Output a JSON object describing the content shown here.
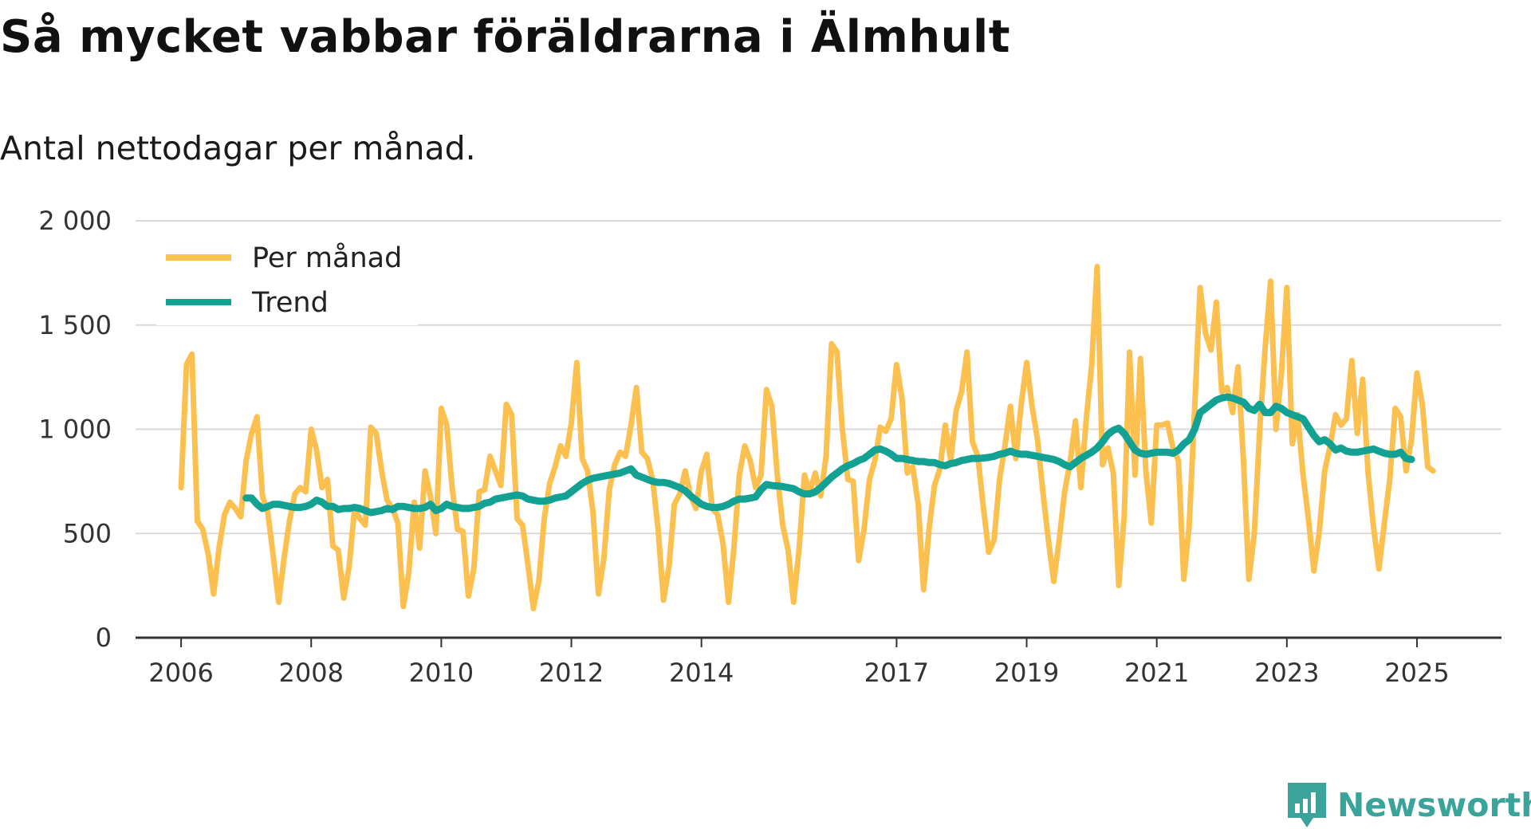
{
  "title": "Så mycket vabbar föräldrarna i Älmhult",
  "subtitle": "Antal nettodagar per månad.",
  "brand": {
    "name": "Newsworthy",
    "icon": "newsworthy-logo-icon"
  },
  "colors": {
    "monthly": "#fbc04f",
    "trend": "#12a192",
    "grid": "#d9d9d9",
    "axis": "#333333",
    "brand": "#3aa39a"
  },
  "chart_data": {
    "type": "line",
    "title": "Så mycket vabbar föräldrarna i Älmhult",
    "subtitle": "Antal nettodagar per månad.",
    "xlabel": "",
    "ylabel": "",
    "ylim": [
      0,
      2000
    ],
    "xlim": [
      2005.3,
      2026.3
    ],
    "grid": true,
    "legend_position": "top-left",
    "y_ticks": [
      0,
      500,
      1000,
      1500,
      2000
    ],
    "y_tick_labels": [
      "0",
      "500",
      "1 000",
      "1 500",
      "2 000"
    ],
    "x_ticks": [
      2006,
      2008,
      2010,
      2012,
      2014,
      2017,
      2019,
      2021,
      2023,
      2025
    ],
    "x_tick_labels": [
      "2006",
      "2008",
      "2010",
      "2012",
      "2014",
      "2017",
      "2019",
      "2021",
      "2023",
      "2025"
    ],
    "series": [
      {
        "name": "Per månad",
        "color": "#fbc04f",
        "x_start": 2006.0,
        "x_step": 0.08333,
        "values": [
          720,
          1310,
          1360,
          560,
          520,
          400,
          210,
          430,
          590,
          650,
          620,
          580,
          850,
          980,
          1060,
          680,
          600,
          390,
          170,
          380,
          560,
          690,
          720,
          700,
          1000,
          900,
          720,
          760,
          440,
          420,
          190,
          340,
          620,
          570,
          540,
          1010,
          980,
          800,
          660,
          620,
          550,
          150,
          310,
          650,
          430,
          800,
          680,
          500,
          1100,
          1020,
          720,
          520,
          510,
          200,
          330,
          700,
          710,
          870,
          800,
          730,
          1120,
          1070,
          570,
          540,
          350,
          140,
          270,
          570,
          740,
          820,
          920,
          870,
          1030,
          1320,
          860,
          800,
          600,
          210,
          380,
          710,
          830,
          890,
          870,
          1020,
          1200,
          890,
          860,
          760,
          520,
          180,
          340,
          640,
          690,
          800,
          680,
          620,
          800,
          880,
          620,
          590,
          450,
          170,
          430,
          780,
          920,
          850,
          720,
          780,
          1190,
          1110,
          780,
          540,
          420,
          170,
          420,
          780,
          700,
          790,
          680,
          870,
          1410,
          1370,
          1000,
          760,
          750,
          370,
          520,
          760,
          850,
          1010,
          990,
          1050,
          1310,
          1150,
          790,
          820,
          640,
          230,
          520,
          730,
          810,
          1020,
          850,
          1090,
          1180,
          1370,
          940,
          870,
          630,
          410,
          470,
          760,
          920,
          1110,
          860,
          1120,
          1320,
          1110,
          950,
          700,
          470,
          270,
          470,
          700,
          840,
          1040,
          720,
          1050,
          1310,
          1780,
          830,
          910,
          790,
          250,
          580,
          1370,
          780,
          1340,
          800,
          550,
          1020,
          1020,
          1030,
          910,
          850,
          280,
          540,
          1100,
          1680,
          1460,
          1380,
          1610,
          1180,
          1200,
          1080,
          1300,
          850,
          280,
          500,
          1000,
          1390,
          1710,
          1000,
          1270,
          1680,
          930,
          1070,
          780,
          570,
          320,
          510,
          800,
          920,
          1070,
          1020,
          1050,
          1330,
          980,
          1240,
          790,
          530,
          330,
          550,
          760,
          1100,
          1060,
          800,
          950,
          1270,
          1120,
          820,
          800
        ]
      },
      {
        "name": "Trend",
        "color": "#12a192",
        "x_start": 2007.0,
        "x_step": 0.08333,
        "values": [
          670,
          670,
          640,
          620,
          630,
          640,
          640,
          635,
          630,
          625,
          625,
          630,
          640,
          660,
          650,
          630,
          630,
          615,
          620,
          620,
          625,
          620,
          610,
          600,
          605,
          610,
          620,
          615,
          630,
          630,
          625,
          620,
          620,
          625,
          640,
          610,
          620,
          640,
          630,
          625,
          620,
          620,
          625,
          630,
          645,
          650,
          665,
          670,
          675,
          680,
          685,
          680,
          665,
          660,
          655,
          655,
          660,
          670,
          675,
          680,
          700,
          720,
          740,
          755,
          765,
          770,
          775,
          780,
          785,
          790,
          800,
          810,
          780,
          770,
          760,
          750,
          745,
          745,
          740,
          730,
          720,
          705,
          680,
          660,
          640,
          630,
          625,
          625,
          630,
          640,
          655,
          665,
          665,
          670,
          675,
          710,
          735,
          730,
          728,
          725,
          720,
          715,
          700,
          690,
          690,
          700,
          720,
          745,
          770,
          790,
          810,
          825,
          835,
          850,
          860,
          880,
          900,
          905,
          895,
          880,
          860,
          860,
          855,
          850,
          845,
          845,
          840,
          840,
          830,
          825,
          835,
          840,
          850,
          855,
          860,
          860,
          862,
          865,
          870,
          880,
          885,
          895,
          885,
          880,
          880,
          875,
          870,
          865,
          860,
          855,
          845,
          830,
          820,
          840,
          860,
          875,
          890,
          910,
          940,
          975,
          995,
          1005,
          980,
          940,
          900,
          885,
          880,
          885,
          890,
          890,
          890,
          885,
          900,
          930,
          950,
          1000,
          1080,
          1100,
          1120,
          1140,
          1150,
          1155,
          1150,
          1140,
          1130,
          1100,
          1090,
          1120,
          1080,
          1080,
          1110,
          1100,
          1080,
          1070,
          1060,
          1050,
          1010,
          970,
          940,
          950,
          930,
          900,
          910,
          895,
          890,
          890,
          895,
          900,
          905,
          895,
          885,
          880,
          880,
          890,
          860,
          855
        ]
      }
    ]
  }
}
